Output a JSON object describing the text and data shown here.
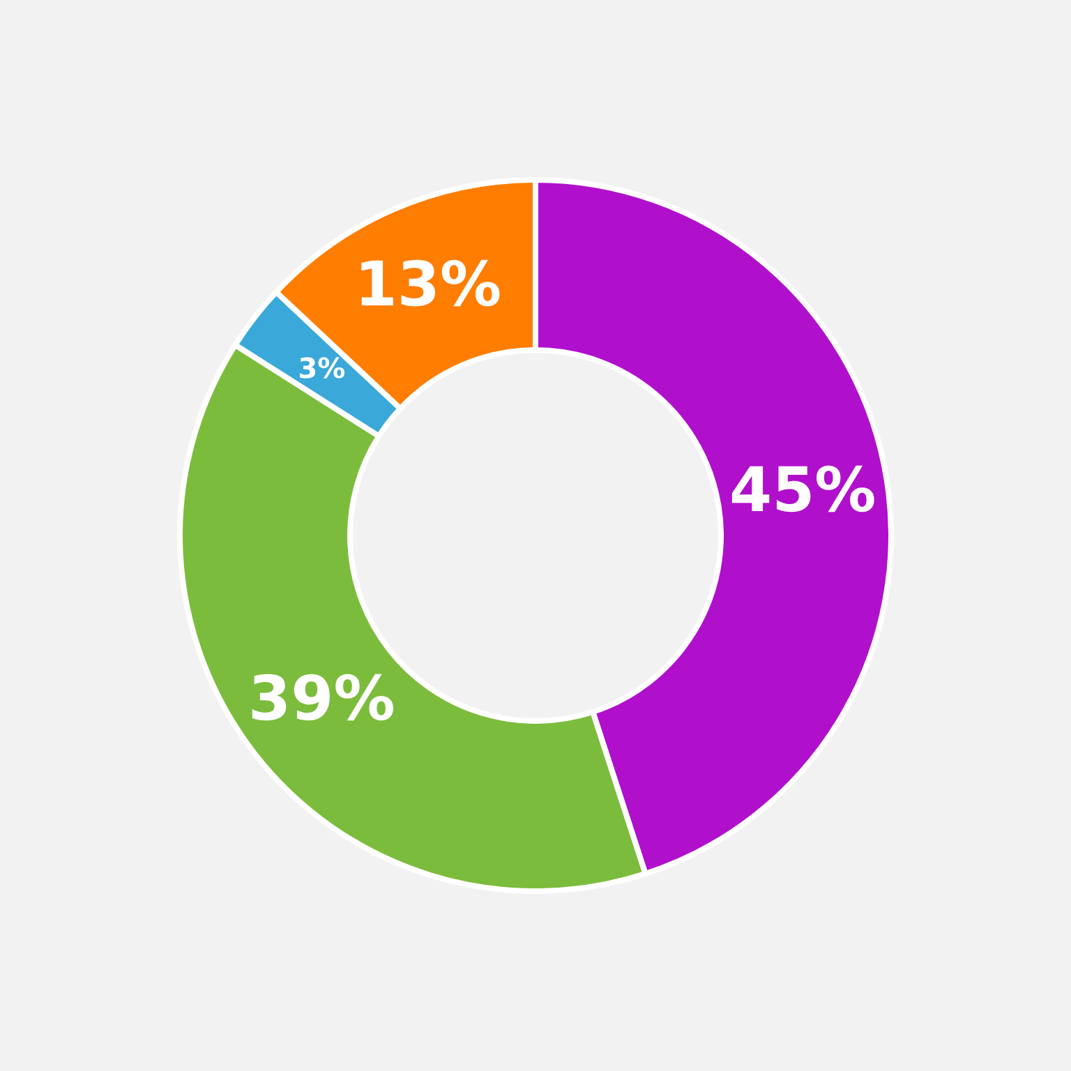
{
  "chart_data": {
    "type": "donut",
    "categories": [
      null,
      null,
      null,
      null
    ],
    "values": [
      45,
      39,
      3,
      13
    ],
    "colors": [
      "#b010cc",
      "#7cbc3c",
      "#3aa8d8",
      "#ff7d00"
    ],
    "value_labels": [
      "45%",
      "39%",
      "3%",
      "13%"
    ]
  }
}
